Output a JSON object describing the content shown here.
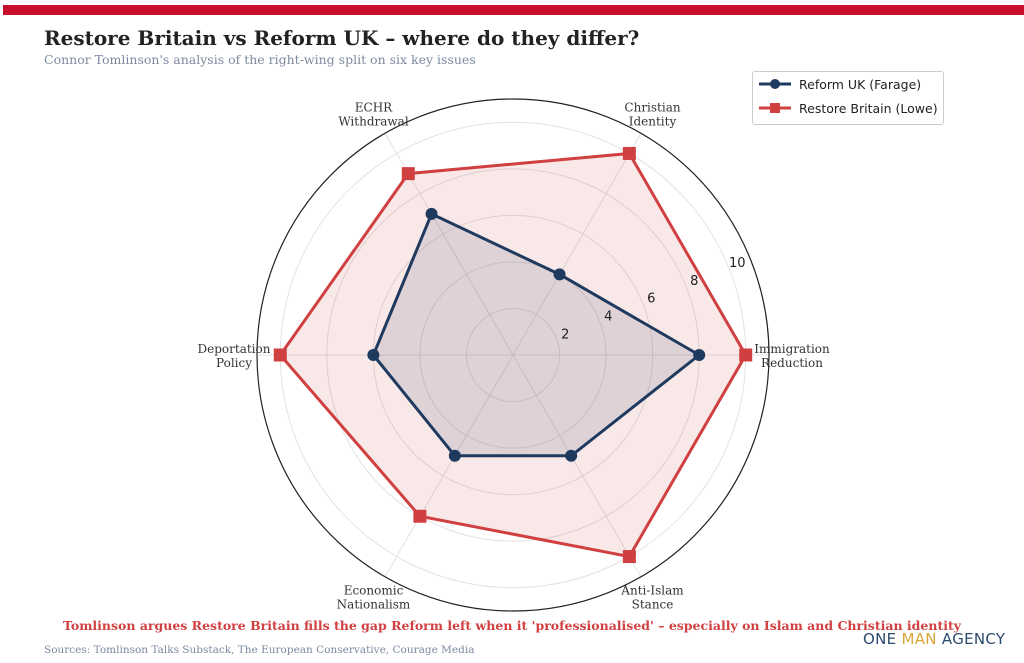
{
  "header": {
    "title": "Restore Britain vs Reform UK – where do they differ?",
    "subtitle": "Connor Tomlinson's analysis of the right-wing split on six key issues"
  },
  "colors": {
    "accent_bar": "#c8102e",
    "reform": "#1f3a5f",
    "restore": "#d04040",
    "restore_fill": "#f9e6e6"
  },
  "chart_data": {
    "type": "radar",
    "title": "Restore Britain vs Reform UK – where do they differ?",
    "categories": [
      [
        "Immigration",
        "Reduction"
      ],
      [
        "Christian",
        "Identity"
      ],
      [
        "ECHR",
        "Withdrawal"
      ],
      [
        "Deportation",
        "Policy"
      ],
      [
        "Economic",
        "Nationalism"
      ],
      [
        "Anti-Islam",
        "Stance"
      ]
    ],
    "series": [
      {
        "name": "Reform UK (Farage)",
        "marker": "circle",
        "color": "#1f3a5f",
        "values": [
          8,
          4,
          7,
          6,
          5,
          5
        ]
      },
      {
        "name": "Restore Britain (Lowe)",
        "marker": "square",
        "color": "#d04040",
        "values": [
          10,
          10,
          9,
          10,
          8,
          10
        ]
      }
    ],
    "rticks": [
      2,
      4,
      6,
      8,
      10
    ],
    "rlim": [
      0,
      11
    ],
    "grid": true,
    "legend": "top-right"
  },
  "footer": {
    "callout": "Tomlinson argues Restore Britain fills the gap Reform left when it 'professionalised' – especially on Islam and Christian identity",
    "sources": "Sources: Tomlinson Talks Substack, The European Conservative, Courage Media",
    "logo": {
      "one": "ONE",
      "man": "MAN",
      "agency": "AGENCY"
    }
  }
}
